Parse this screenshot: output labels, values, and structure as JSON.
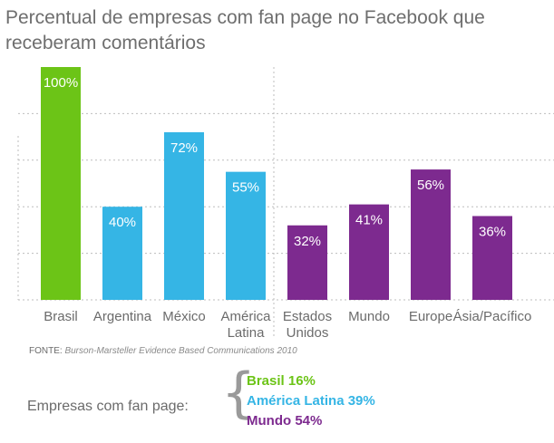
{
  "title": "Percentual de empresas com fan page no Facebook que receberam comentários",
  "chart_data": {
    "type": "bar",
    "categories": [
      "Brasil",
      "Argentina",
      "México",
      "América Latina",
      "Estados Unidos",
      "Mundo",
      "Europe",
      "Ásia/Pacífico"
    ],
    "category_lines": [
      [
        "Brasil"
      ],
      [
        "Argentina"
      ],
      [
        "México"
      ],
      [
        "América",
        "Latina"
      ],
      [
        "Estados",
        "Unidos"
      ],
      [
        "Mundo"
      ],
      [
        "Europe"
      ],
      [
        "Ásia/Pacífico"
      ]
    ],
    "values": [
      100,
      40,
      72,
      55,
      32,
      41,
      56,
      36
    ],
    "value_labels": [
      "100%",
      "40%",
      "72%",
      "55%",
      "32%",
      "41%",
      "56%",
      "36%"
    ],
    "colors": [
      "#6cc417",
      "#35b5e5",
      "#35b5e5",
      "#35b5e5",
      "#7d2a8f",
      "#7d2a8f",
      "#7d2a8f",
      "#7d2a8f"
    ],
    "ylim": [
      0,
      100
    ],
    "grid": true,
    "separator_after_index": 3
  },
  "source": {
    "prefix": "FONTE:",
    "text": "Burson-Marsteller Evidence Based Communications 2010"
  },
  "fan_page": {
    "label": "Empresas com fan page:",
    "items": [
      {
        "text": "Brasil  16%",
        "color": "#6cc417"
      },
      {
        "text": "América Latina 39%",
        "color": "#35b5e5"
      },
      {
        "text": "Mundo 54%",
        "color": "#7d2a8f"
      }
    ]
  }
}
